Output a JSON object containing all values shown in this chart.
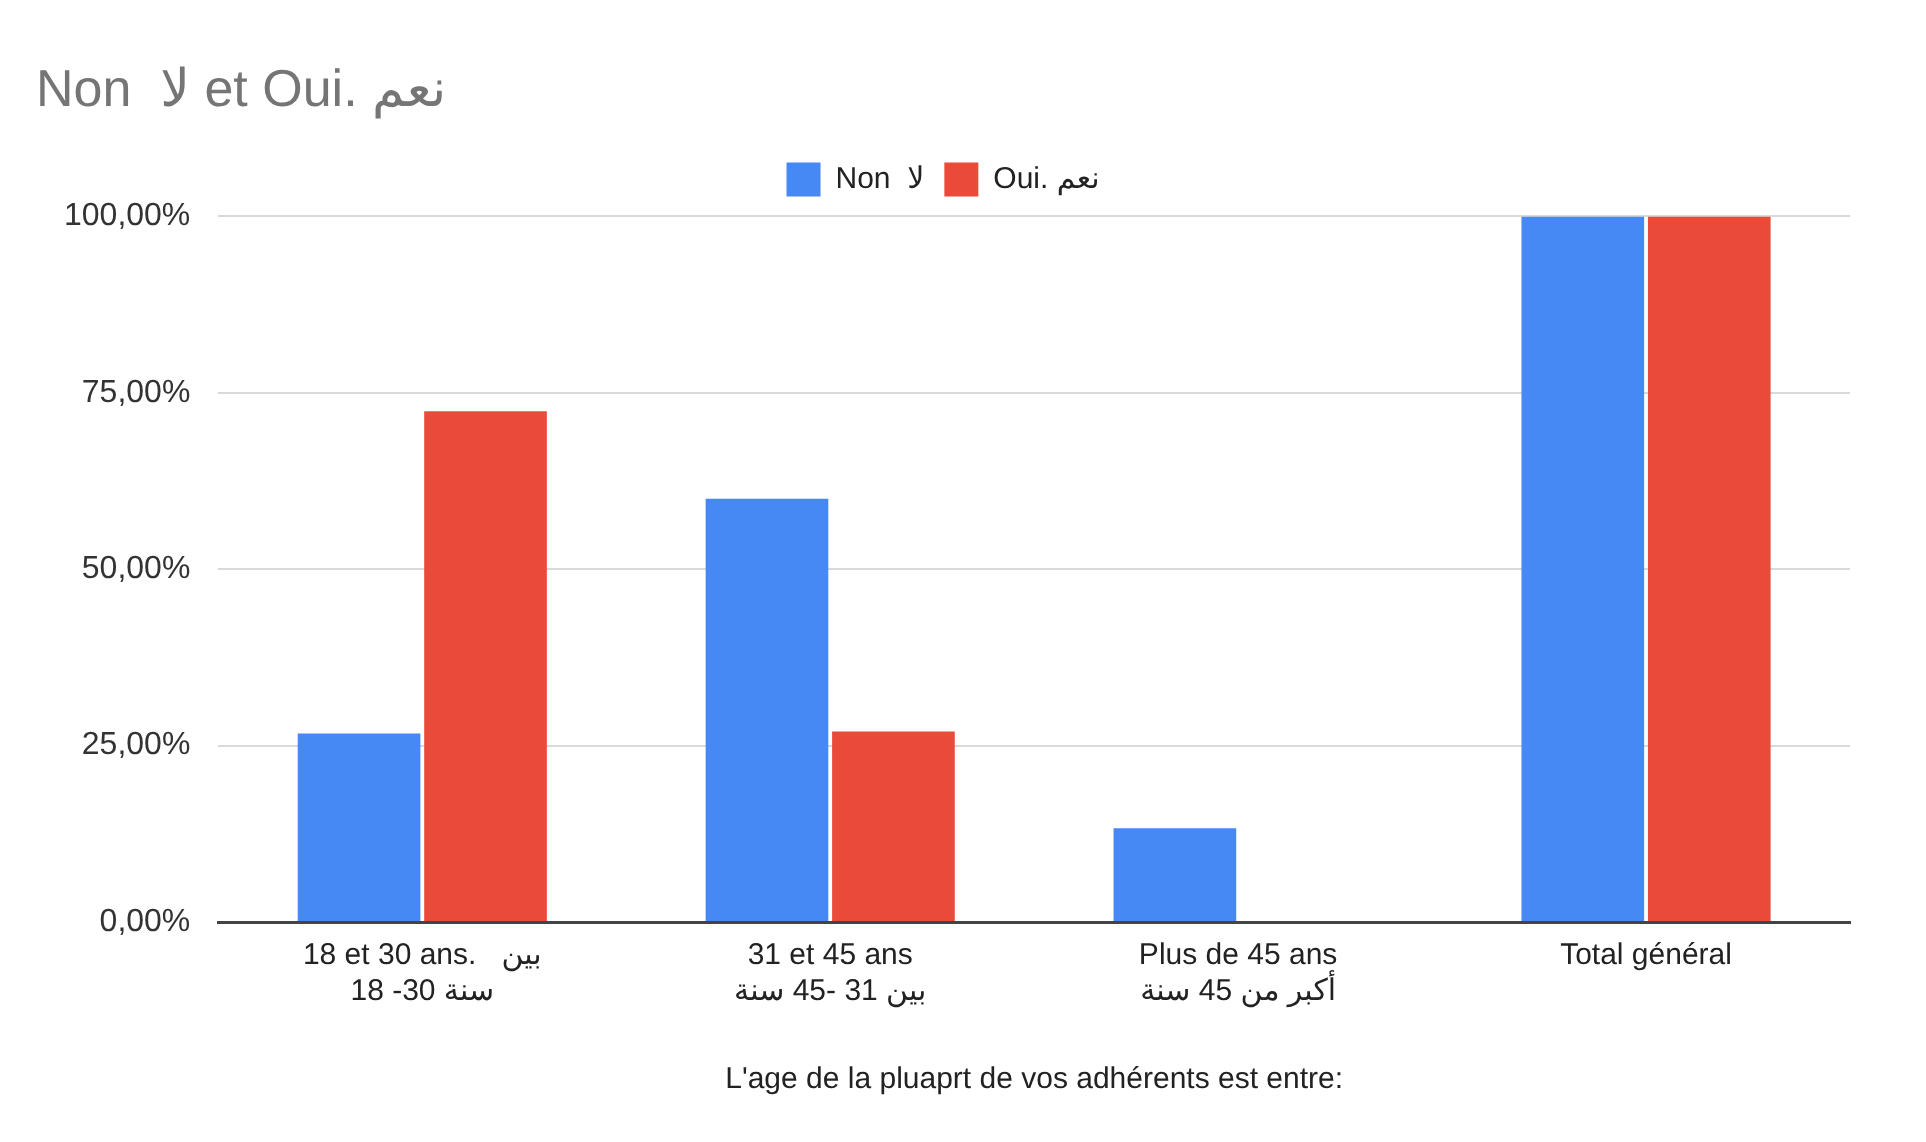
{
  "chart_data": {
    "type": "bar",
    "title": "Non  لا et Oui. نعم",
    "xlabel": "L'age de la pluaprt de vos adhérents est entre:",
    "categories": [
      "18 et 30 ans.   بين\nسنة 30- 18",
      "31 et 45 ans\nبين 31 -45 سنة",
      "Plus de 45 ans\nأكبر من 45 سنة",
      "Total général"
    ],
    "series": [
      {
        "name": "Non  لا",
        "color": "#4688f4",
        "values": [
          26.7,
          60,
          13.3,
          100
        ]
      },
      {
        "name": "Oui. نعم",
        "color": "#ea4a3a",
        "values": [
          72.4,
          27,
          0,
          100
        ]
      }
    ],
    "ylim": [
      0,
      100
    ],
    "yticks": [
      {
        "value": 0,
        "label": "0,00%"
      },
      {
        "value": 25,
        "label": "25,00%"
      },
      {
        "value": 50,
        "label": "50,00%"
      },
      {
        "value": 75,
        "label": "75,00%"
      },
      {
        "value": 100,
        "label": "100,00%"
      }
    ],
    "grid": "y",
    "legend": "top"
  }
}
